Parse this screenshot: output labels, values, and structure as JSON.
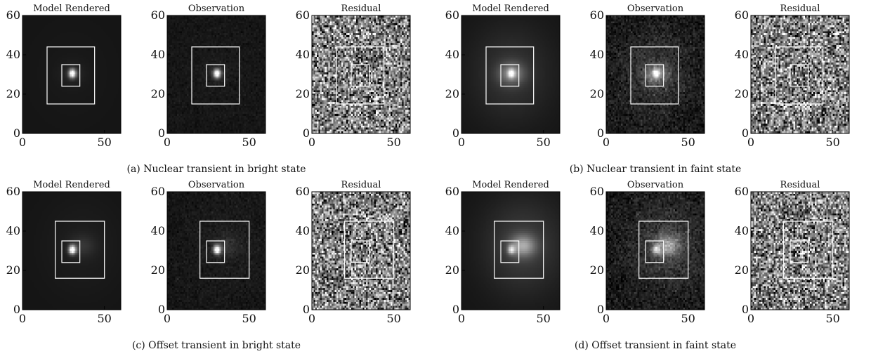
{
  "figure": {
    "x_ticks": [
      0,
      50
    ],
    "y_ticks": [
      0,
      20,
      40,
      60
    ],
    "axis_range": [
      0,
      60
    ],
    "groups": [
      {
        "caption": "(a) Nuclear transient in bright state",
        "panels": [
          {
            "title": "Model Rendered",
            "kind": "model"
          },
          {
            "title": "Observation",
            "kind": "observation"
          },
          {
            "title": "Residual",
            "kind": "residual"
          }
        ],
        "host_offset": [
          0,
          0
        ],
        "host_brightness": 0.05,
        "transient_brightness": 1.0,
        "noise": 0.08,
        "outer_box": [
          15,
          15,
          44,
          44
        ],
        "inner_box": [
          24,
          24,
          35,
          35
        ]
      },
      {
        "caption": "(b) Nuclear transient in faint state",
        "panels": [
          {
            "title": "Model Rendered",
            "kind": "model"
          },
          {
            "title": "Observation",
            "kind": "observation"
          },
          {
            "title": "Residual",
            "kind": "residual"
          }
        ],
        "host_offset": [
          0,
          0
        ],
        "host_brightness": 0.35,
        "transient_brightness": 0.6,
        "noise": 0.25,
        "outer_box": [
          15,
          15,
          44,
          44
        ],
        "inner_box": [
          24,
          24,
          35,
          35
        ]
      },
      {
        "caption": "(c) Offset transient in bright state",
        "panels": [
          {
            "title": "Model Rendered",
            "kind": "model"
          },
          {
            "title": "Observation",
            "kind": "observation"
          },
          {
            "title": "Residual",
            "kind": "residual"
          }
        ],
        "host_offset": [
          6,
          2
        ],
        "host_brightness": 0.1,
        "transient_brightness": 1.0,
        "noise": 0.1,
        "outer_box": [
          20,
          16,
          50,
          45
        ],
        "inner_box": [
          24,
          24,
          35,
          35
        ]
      },
      {
        "caption": "(d) Offset transient in faint state",
        "panels": [
          {
            "title": "Model Rendered",
            "kind": "model"
          },
          {
            "title": "Observation",
            "kind": "observation"
          },
          {
            "title": "Residual",
            "kind": "residual"
          }
        ],
        "host_offset": [
          7,
          2
        ],
        "host_brightness": 0.45,
        "transient_brightness": 0.55,
        "noise": 0.25,
        "outer_box": [
          20,
          16,
          50,
          45
        ],
        "inner_box": [
          24,
          24,
          35,
          35
        ]
      }
    ]
  }
}
